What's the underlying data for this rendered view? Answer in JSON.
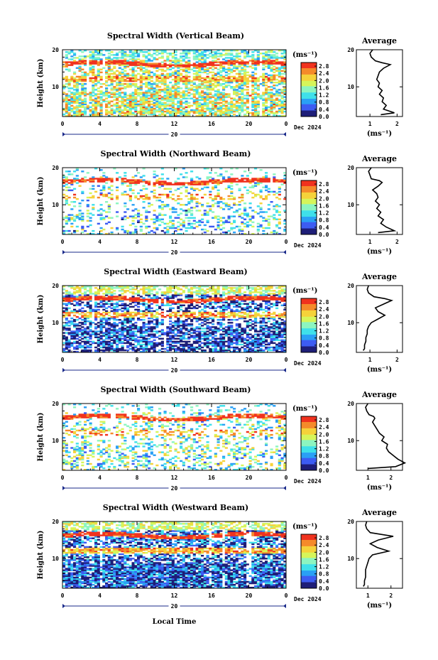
{
  "figure": {
    "xlabel": "Local Time",
    "date_text": "Dec 2024",
    "date_day": "20",
    "colorbar_unit": "(ms⁻¹)",
    "colorbar_ticks": [
      "0.0",
      "0.4",
      "0.8",
      "1.2",
      "1.6",
      "2.0",
      "2.4",
      "2.8"
    ],
    "colormap": [
      "#1e1e78",
      "#3d5cf2",
      "#2aa0f5",
      "#3fe0ea",
      "#8cf5c0",
      "#d6f55a",
      "#f5d23a",
      "#f58a2a",
      "#f0321e"
    ],
    "average_title": "Average",
    "average_xlabel": "(ms⁻¹)",
    "ylabel": "Height (km)"
  },
  "chart_data": [
    {
      "type": "heatmap",
      "title": "Spectral Width (Vertical Beam)",
      "xlabel": "Local Time",
      "ylabel": "Height (km)",
      "x_ticks": [
        "0",
        "4",
        "8",
        "12",
        "16",
        "20",
        "0"
      ],
      "y_ticks": [
        "10",
        "20"
      ],
      "xlim": [
        0,
        24
      ],
      "ylim": [
        2,
        20
      ],
      "colorbar_range": [
        0,
        3.0
      ],
      "profile": {
        "title": "Average",
        "xlabel": "(ms⁻¹)",
        "x_ticks": [
          "1",
          "2"
        ],
        "xlim": [
          0.5,
          2.2
        ],
        "y_ticks": [
          "10",
          "20"
        ],
        "height": [
          2.5,
          3,
          4,
          5,
          6,
          7,
          8,
          9,
          10,
          11,
          12,
          13,
          14,
          15,
          16,
          16.5,
          17,
          18,
          19,
          20
        ],
        "width": [
          1.4,
          1.9,
          1.5,
          1.6,
          1.45,
          1.5,
          1.35,
          1.45,
          1.3,
          1.35,
          1.25,
          1.3,
          1.35,
          1.5,
          1.75,
          1.45,
          1.2,
          1.05,
          1.0,
          1.1
        ]
      }
    },
    {
      "type": "heatmap",
      "title": "Spectral Width (Northward Beam)",
      "xlabel": "Local Time",
      "ylabel": "Height (km)",
      "x_ticks": [
        "0",
        "4",
        "8",
        "12",
        "16",
        "20",
        "0"
      ],
      "y_ticks": [
        "10",
        "20"
      ],
      "xlim": [
        0,
        24
      ],
      "ylim": [
        2,
        20
      ],
      "colorbar_range": [
        0,
        3.0
      ],
      "profile": {
        "title": "Average",
        "xlabel": "(ms⁻¹)",
        "x_ticks": [
          "1",
          "2"
        ],
        "xlim": [
          0.5,
          2.2
        ],
        "y_ticks": [
          "10",
          "20"
        ],
        "height": [
          2.5,
          3,
          4,
          5,
          6,
          7,
          8,
          9,
          10,
          11,
          12,
          13,
          14,
          15,
          16,
          16.5,
          17,
          18,
          19,
          20
        ],
        "width": [
          1.3,
          1.9,
          1.6,
          1.4,
          1.5,
          1.3,
          1.4,
          1.25,
          1.35,
          1.2,
          1.3,
          1.25,
          1.1,
          1.3,
          1.45,
          1.35,
          1.05,
          1.0,
          0.95,
          1.05
        ]
      }
    },
    {
      "type": "heatmap",
      "title": "Spectral Width (Eastward Beam)",
      "xlabel": "Local Time",
      "ylabel": "Height (km)",
      "x_ticks": [
        "0",
        "4",
        "8",
        "12",
        "16",
        "20",
        "0"
      ],
      "y_ticks": [
        "10",
        "20"
      ],
      "xlim": [
        0,
        24
      ],
      "ylim": [
        2,
        20
      ],
      "colorbar_range": [
        0,
        3.0
      ],
      "profile": {
        "title": "Average",
        "xlabel": "(ms⁻¹)",
        "x_ticks": [
          "1",
          "2"
        ],
        "xlim": [
          0.5,
          2.2
        ],
        "y_ticks": [
          "10",
          "20"
        ],
        "height": [
          2.5,
          3,
          4,
          5,
          6,
          7,
          8,
          9,
          10,
          11,
          12,
          13,
          14,
          15,
          16,
          16.5,
          17,
          18,
          19,
          20
        ],
        "width": [
          0.75,
          0.8,
          0.8,
          0.85,
          0.85,
          0.9,
          0.9,
          0.95,
          1.05,
          1.3,
          1.55,
          1.3,
          1.2,
          1.5,
          1.8,
          1.55,
          1.15,
          0.95,
          0.9,
          0.95
        ]
      }
    },
    {
      "type": "heatmap",
      "title": "Spectral Width (Southward Beam)",
      "xlabel": "Local Time",
      "ylabel": "Height (km)",
      "x_ticks": [
        "0",
        "4",
        "8",
        "12",
        "16",
        "20",
        "0"
      ],
      "y_ticks": [
        "10",
        "20"
      ],
      "xlim": [
        0,
        24
      ],
      "ylim": [
        2,
        20
      ],
      "colorbar_range": [
        0,
        3.0
      ],
      "profile": {
        "title": "Average",
        "xlabel": "(ms⁻¹)",
        "x_ticks": [
          "1",
          "2"
        ],
        "xlim": [
          0.5,
          2.5
        ],
        "y_ticks": [
          "10",
          "20"
        ],
        "height": [
          2.5,
          3,
          4,
          5,
          6,
          7,
          8,
          9,
          10,
          11,
          12,
          13,
          14,
          15,
          16,
          16.5,
          17,
          18,
          19,
          20
        ],
        "width": [
          1.0,
          2.2,
          2.6,
          2.3,
          2.1,
          1.9,
          1.8,
          1.85,
          1.6,
          1.7,
          1.5,
          1.4,
          1.3,
          1.2,
          1.3,
          1.25,
          1.05,
          0.95,
          0.9,
          1.0
        ]
      }
    },
    {
      "type": "heatmap",
      "title": "Spectral Width (Westward Beam)",
      "xlabel": "Local Time",
      "ylabel": "Height (km)",
      "x_ticks": [
        "0",
        "4",
        "8",
        "12",
        "16",
        "20",
        "0"
      ],
      "y_ticks": [
        "10",
        "20"
      ],
      "xlim": [
        0,
        24
      ],
      "ylim": [
        2,
        20
      ],
      "colorbar_range": [
        0,
        3.0
      ],
      "profile": {
        "title": "Average",
        "xlabel": "(ms⁻¹)",
        "x_ticks": [
          "1",
          "2"
        ],
        "xlim": [
          0.5,
          2.5
        ],
        "y_ticks": [
          "10",
          "20"
        ],
        "height": [
          2.5,
          3,
          4,
          5,
          6,
          7,
          8,
          9,
          10,
          11,
          12,
          13,
          14,
          15,
          16,
          16.5,
          17,
          18,
          19,
          20
        ],
        "width": [
          0.8,
          0.85,
          0.85,
          0.9,
          0.9,
          0.9,
          0.95,
          1.0,
          1.05,
          1.2,
          1.9,
          1.4,
          1.1,
          1.45,
          2.1,
          1.6,
          1.1,
          0.95,
          0.9,
          0.95
        ]
      }
    }
  ]
}
